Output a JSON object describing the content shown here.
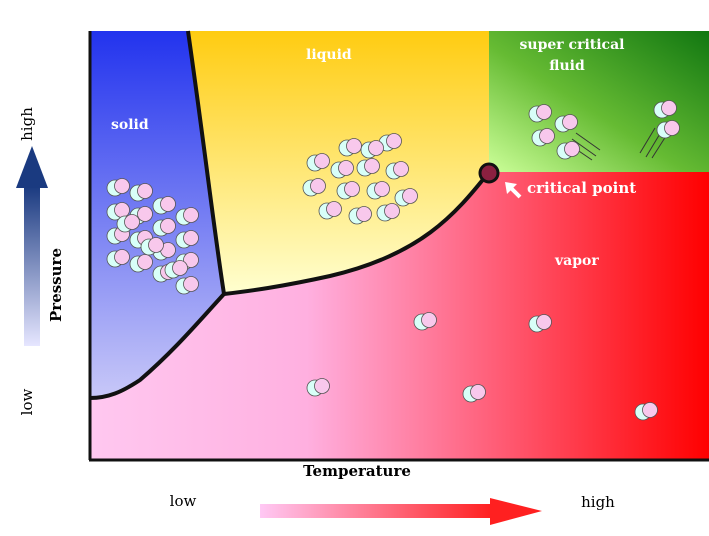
{
  "regions": {
    "solid": "solid",
    "liquid": "liquid",
    "supercritical_line1": "super critical",
    "supercritical_line2": "fluid",
    "vapor": "vapor"
  },
  "critical_point": {
    "label": "critical point"
  },
  "axes": {
    "x_label": "Temperature",
    "x_low": "low",
    "x_high": "high",
    "y_label": "Pressure",
    "y_low": "low",
    "y_high": "high"
  },
  "colors": {
    "solid_top": "#2233ee",
    "solid_bottom": "#c8c8f8",
    "liquid_top": "#ffcc11",
    "liquid_bottom": "#ffffd0",
    "supercritical_dark": "#117711",
    "supercritical_light": "#ccff99",
    "vapor_left": "#ffc8f0",
    "vapor_right": "#ff0000",
    "critical_point_fill": "#8b2040",
    "molecule_cyan": "#d8fff8",
    "molecule_pink": "#f8c8ec"
  }
}
